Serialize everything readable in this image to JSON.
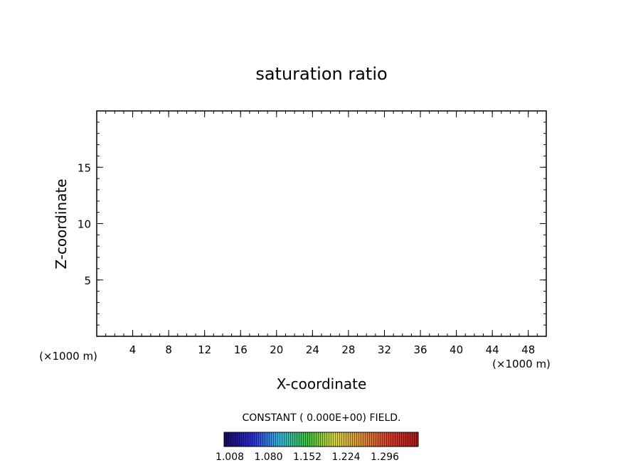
{
  "chart_data": {
    "type": "heatmap",
    "title": "saturation ratio",
    "xlabel": "X-coordinate",
    "ylabel": "Z-coordinate",
    "x_units_left": "(×1000 m)",
    "x_units_right": "(×1000 m)",
    "xlim": [
      0,
      50
    ],
    "ylim": [
      0,
      20
    ],
    "x_ticks": [
      4,
      8,
      12,
      16,
      20,
      24,
      28,
      32,
      36,
      40,
      44,
      48
    ],
    "x_tick_labels": [
      "4",
      "8",
      "12",
      "16",
      "20",
      "24",
      "28",
      "32",
      "36",
      "40",
      "44",
      "48"
    ],
    "y_ticks": [
      5,
      10,
      15
    ],
    "y_tick_labels": [
      "5",
      "10",
      "15"
    ],
    "field_note": "CONSTANT ( 0.000E+00) FIELD.",
    "field_value": 0.0,
    "colorbar": {
      "labels": [
        "1.008",
        "1.080",
        "1.152",
        "1.224",
        "1.296"
      ],
      "values": [
        1.008,
        1.08,
        1.152,
        1.224,
        1.296
      ],
      "colors": [
        "#1a0a5e",
        "#2b2bd6",
        "#38b8e0",
        "#3cc43c",
        "#d8d640",
        "#e08a3a",
        "#d83a2a",
        "#a81a1a"
      ]
    }
  }
}
